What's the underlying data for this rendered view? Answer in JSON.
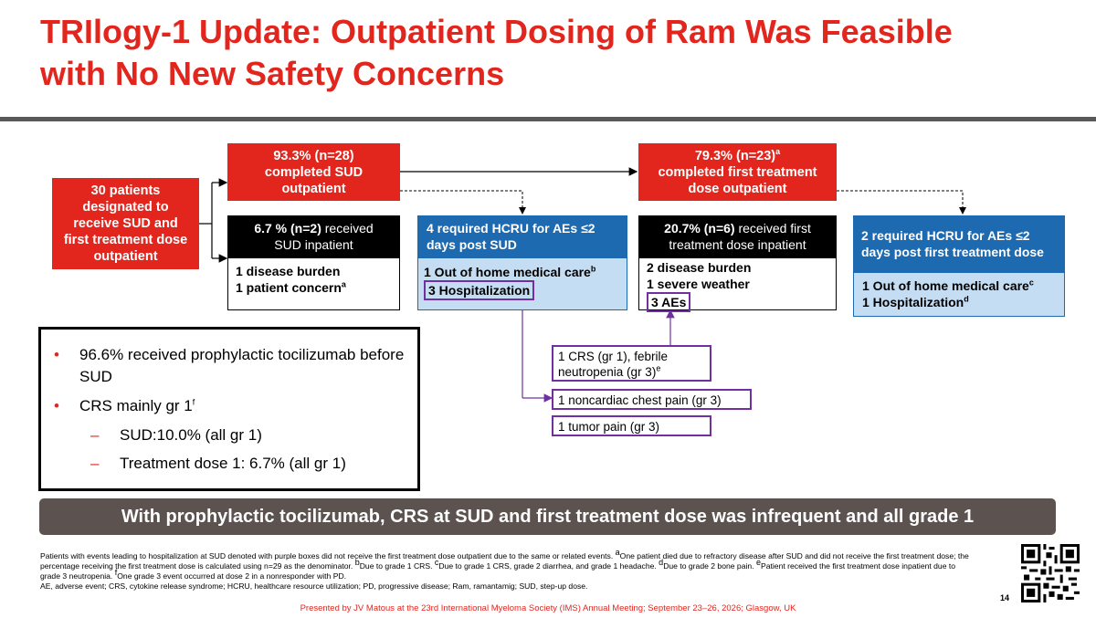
{
  "title": {
    "line1": "TRIlogy-1 Update: Outpatient Dosing of Ram Was Feasible",
    "line2": "with No New Safety Concerns"
  },
  "flow": {
    "patients": "30 patients designated to receive SUD and first treatment dose outpatient",
    "sud_out": {
      "bold": "93.3% (n=28)",
      "rest": "completed SUD outpatient"
    },
    "sud_in": {
      "bold": "6.7 % (n=2)",
      "rest1": " received",
      "rest2": "SUD inpatient"
    },
    "sud_in_items": [
      "1 disease burden",
      "1 patient concern"
    ],
    "sud_in_sup": "a",
    "sud_hcru": "4 required HCRU for AEs ≤2 days post SUD",
    "sud_hcru_items": [
      "1 Out of home medical care",
      "3 Hospitalization"
    ],
    "sud_hcru_sup": "b",
    "ftd_out": {
      "bold": "79.3% (n=23)",
      "sup": "a",
      "rest": "completed first treatment dose outpatient"
    },
    "ftd_in": {
      "bold": "20.7% (n=6)",
      "rest1": " received first",
      "rest2": "treatment dose inpatient"
    },
    "ftd_in_items": [
      "2 disease burden",
      "1 severe weather",
      "3 AEs"
    ],
    "ftd_hcru": "2 required HCRU for AEs ≤2 days post first treatment dose",
    "ftd_hcru_items": [
      "1 Out of home medical care",
      "1 Hospitalization"
    ],
    "ftd_hcru_sups": [
      "c",
      "d"
    ],
    "ae_boxes": [
      "1 CRS (gr 1), febrile neutropenia (gr 3)",
      "1 noncardiac chest pain (gr 3)",
      "1 tumor pain (gr 3)"
    ],
    "ae_sup": "e"
  },
  "bullets": {
    "b1": "96.6% received prophylactic tocilizumab before SUD",
    "b2": "CRS mainly gr 1",
    "b2_sup": "f",
    "sub1": "SUD:10.0% (all gr 1)",
    "sub2": "Treatment dose 1: 6.7% (all gr 1)",
    "marker": "•",
    "dash": "–"
  },
  "banner": "With prophylactic tocilizumab, CRS at SUD and first treatment dose was infrequent and all grade 1",
  "footnotes": {
    "line1": "Patients with events leading to hospitalization at SUD denoted with purple boxes did not receive the first treatment dose outpatient due to the same or related events. ",
    "a": "One patient died due to refractory disease after SUD and did not receive the first treatment dose; the percentage receiving the first treatment dose is calculated using n=29 as the denominator. ",
    "b": "Due to grade 1 CRS. ",
    "c": "Due to grade 1 CRS, grade 2 diarrhea, and grade 1 headache. ",
    "d": "Due to grade 2 bone pain. ",
    "e": "Patient received the first treatment dose inpatient due to grade 3 neutropenia. ",
    "f": "One grade 3 event occurred at dose 2 in a nonresponder with PD.",
    "abbrev": "AE, adverse event; CRS, cytokine release syndrome; HCRU, healthcare resource utilization; PD, progressive disease; Ram, ramantamig; SUD, step-up dose."
  },
  "presented": "Presented by JV Matous at the 23rd International Myeloma Society (IMS) Annual Meeting; September 23–26, 2026; Glasgow, UK",
  "page_number": "14",
  "colors": {
    "accent_red": "#e2261d",
    "blue": "#1d6ab0",
    "light_blue": "#c5ddf3",
    "purple": "#7030a0",
    "banner": "#5c5351"
  }
}
